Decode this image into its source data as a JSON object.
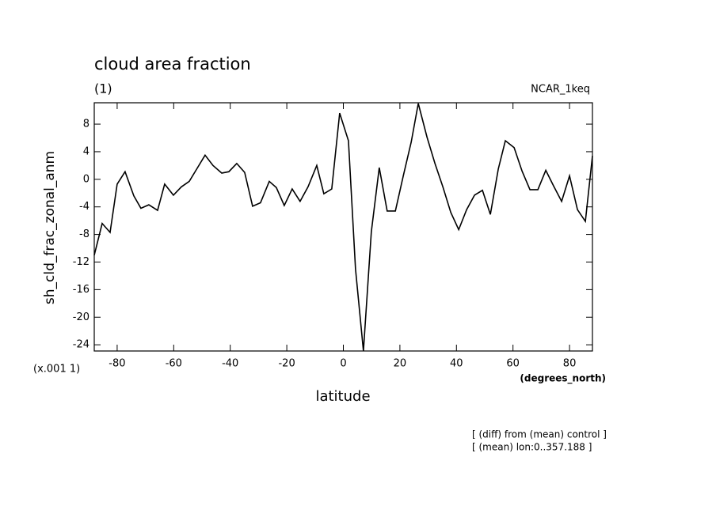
{
  "chart_data": {
    "type": "line",
    "title": "cloud area fraction",
    "subtitle": "(1)",
    "run_label": "NCAR_1keq",
    "y_label": "sh_cld_frac_zonal_anm",
    "y_scale_label": "(x.001 1)",
    "x_label": "latitude",
    "x_units_label": "(degrees_north)",
    "notes": [
      "[ (diff) from (mean) control ]",
      "[ (mean) lon:0..357.188 ]"
    ],
    "x": [
      -88.1,
      -85.3,
      -82.5,
      -80.0,
      -77.2,
      -74.1,
      -71.6,
      -68.8,
      -65.7,
      -63.2,
      -60.1,
      -57.3,
      -54.5,
      -51.7,
      -48.9,
      -46.1,
      -43.0,
      -40.5,
      -37.7,
      -34.9,
      -32.1,
      -29.3,
      -26.2,
      -23.7,
      -20.9,
      -18.1,
      -15.3,
      -12.5,
      -9.4,
      -6.9,
      -4.1,
      -1.3,
      1.8,
      4.3,
      7.1,
      9.9,
      12.7,
      15.5,
      18.4,
      21.2,
      24.0,
      26.5,
      29.6,
      32.4,
      35.2,
      38.0,
      40.8,
      43.6,
      46.4,
      49.2,
      52.0,
      54.8,
      57.3,
      60.4,
      63.2,
      66.0,
      68.8,
      71.6,
      74.4,
      77.2,
      80.0,
      82.8,
      85.6,
      88.1
    ],
    "series": [
      {
        "color": "#000000",
        "values": [
          -11.0,
          -6.4,
          -7.7,
          -0.7,
          1.1,
          -2.4,
          -4.2,
          -3.7,
          -4.5,
          -0.7,
          -2.3,
          -1.1,
          -0.3,
          1.6,
          3.5,
          2.0,
          0.9,
          1.1,
          2.3,
          1.0,
          -3.9,
          -3.4,
          -0.3,
          -1.2,
          -3.8,
          -1.4,
          -3.2,
          -1.1,
          2.0,
          -2.1,
          -1.4,
          9.6,
          5.6,
          -13.0,
          -24.9,
          -7.6,
          1.7,
          -4.6,
          -4.6,
          0.5,
          5.4,
          11.0,
          6.1,
          2.3,
          -1.1,
          -4.8,
          -7.3,
          -4.4,
          -2.3,
          -1.6,
          -5.1,
          1.5,
          5.6,
          4.6,
          1.2,
          -1.5,
          -1.5,
          1.3,
          -1.0,
          -3.2,
          0.5,
          -4.4,
          -6.1,
          3.4
        ]
      }
    ],
    "xlim": [
      -88.1,
      88.1
    ],
    "ylim": [
      -24.9,
      11.1
    ],
    "xticks": [
      -80,
      -60,
      -40,
      -20,
      0,
      20,
      40,
      60,
      80
    ],
    "yticks": [
      -24,
      -20,
      -16,
      -12,
      -8,
      -4,
      0,
      4,
      8
    ]
  }
}
